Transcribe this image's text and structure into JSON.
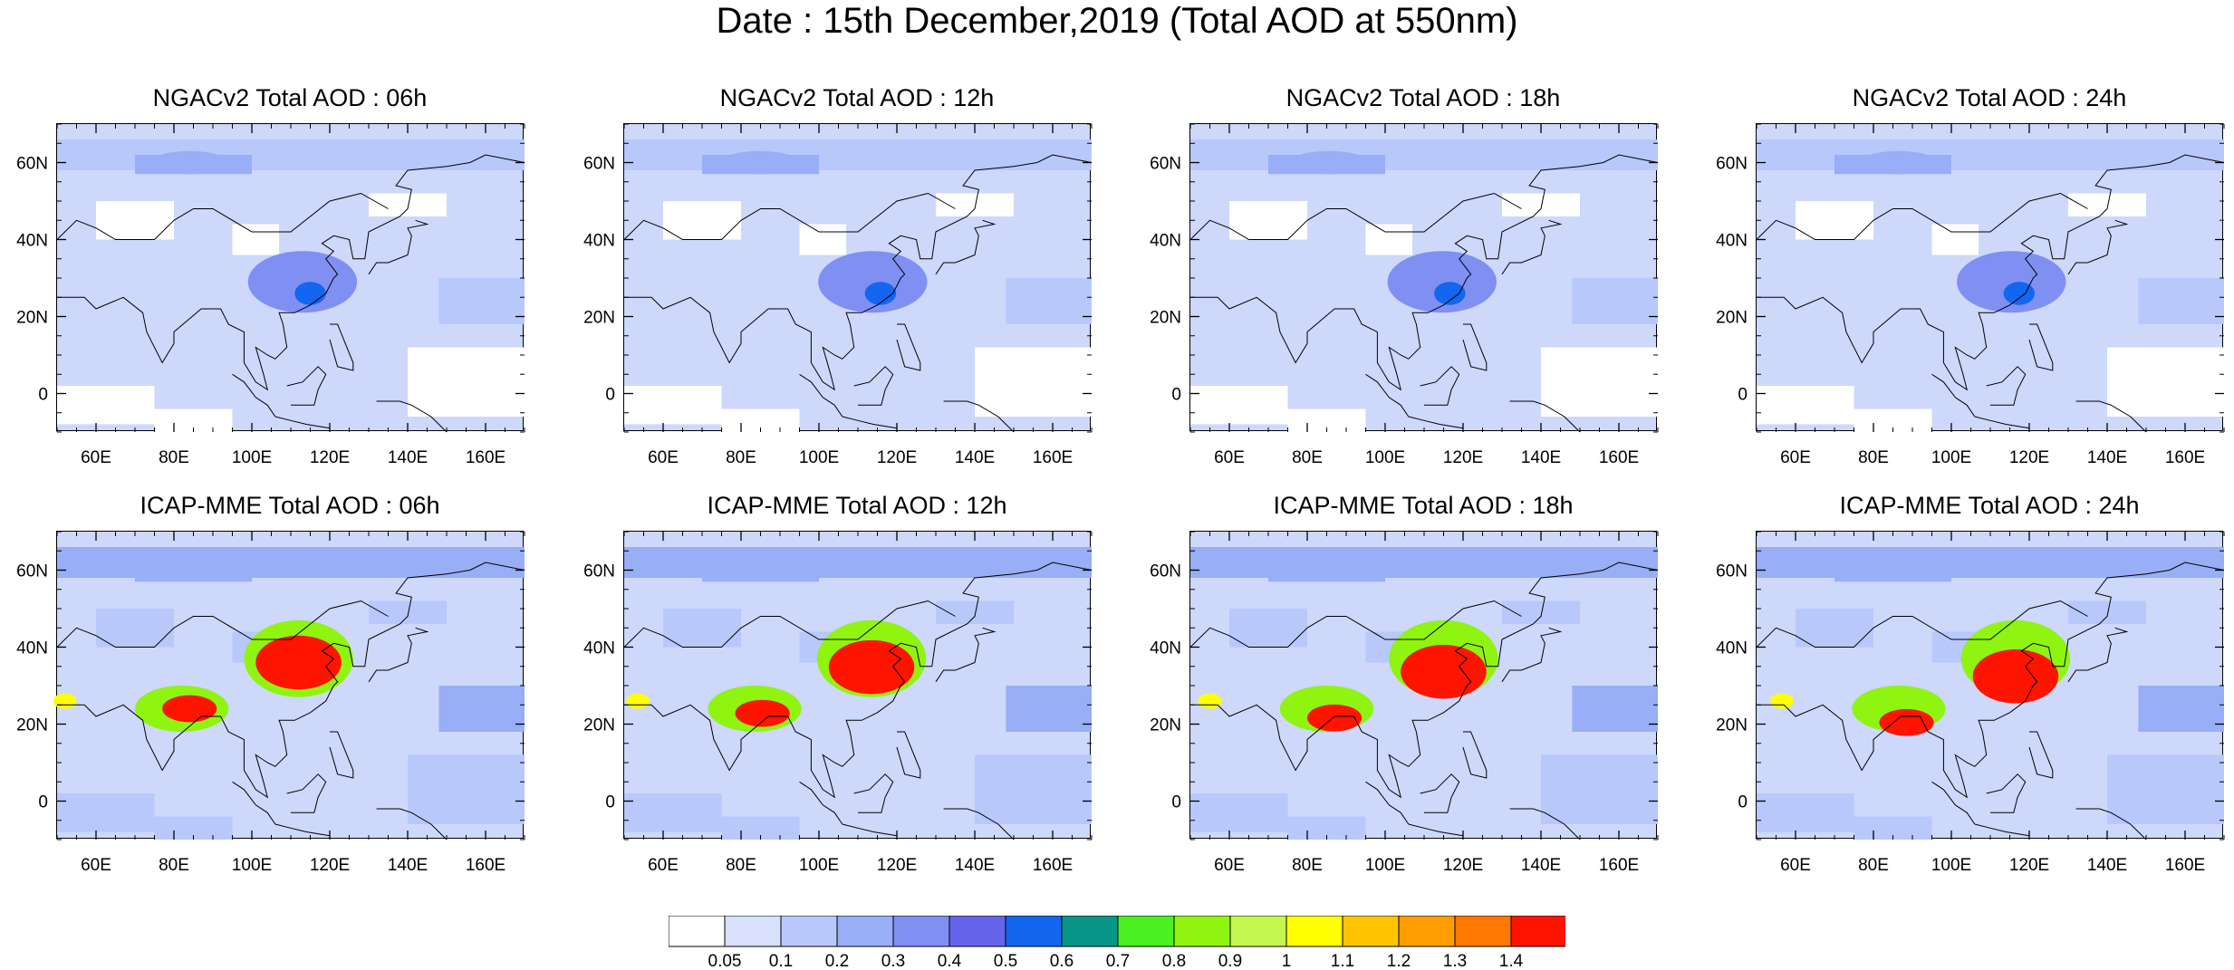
{
  "figure": {
    "title": "Date : 15th December,2019 (Total AOD at 550nm)"
  },
  "chart_data": {
    "type": "heatmap",
    "panels": [
      {
        "title": "NGACv2 Total AOD : 06h",
        "model": "NGACv2",
        "hour": "06h"
      },
      {
        "title": "NGACv2 Total AOD : 12h",
        "model": "NGACv2",
        "hour": "12h"
      },
      {
        "title": "NGACv2 Total AOD : 18h",
        "model": "NGACv2",
        "hour": "18h"
      },
      {
        "title": "NGACv2 Total AOD : 24h",
        "model": "NGACv2",
        "hour": "24h"
      },
      {
        "title": "ICAP-MME Total AOD : 06h",
        "model": "ICAP-MME",
        "hour": "06h"
      },
      {
        "title": "ICAP-MME Total AOD : 12h",
        "model": "ICAP-MME",
        "hour": "12h"
      },
      {
        "title": "ICAP-MME Total AOD : 18h",
        "model": "ICAP-MME",
        "hour": "18h"
      },
      {
        "title": "ICAP-MME Total AOD : 24h",
        "model": "ICAP-MME",
        "hour": "24h"
      }
    ],
    "xrange": [
      50,
      170
    ],
    "yrange": [
      -10,
      70
    ],
    "xticks": [
      60,
      80,
      100,
      120,
      140,
      160
    ],
    "xtick_labels": [
      "60E",
      "80E",
      "100E",
      "120E",
      "140E",
      "160E"
    ],
    "yticks": [
      0,
      20,
      40,
      60
    ],
    "ytick_labels": [
      "0",
      "20N",
      "40N",
      "60N"
    ],
    "colorbar": {
      "levels": [
        "0.05",
        "0.1",
        "0.2",
        "0.3",
        "0.4",
        "0.5",
        "0.6",
        "0.7",
        "0.8",
        "0.9",
        "1",
        "1.1",
        "1.2",
        "1.3",
        "1.4"
      ],
      "colors": [
        "#ffffff",
        "#d8e0fc",
        "#b8c8fa",
        "#98aef6",
        "#7f8ff2",
        "#6563ea",
        "#1266f0",
        "#079688",
        "#4af020",
        "#8ff410",
        "#c4f850",
        "#ffff00",
        "#ffc400",
        "#ff9d00",
        "#ff7800",
        "#ff1400"
      ]
    },
    "hotspots": {
      "NGACv2": [
        {
          "lon": 113,
          "lat": 29,
          "rx": 14,
          "ry": 8,
          "level": 0.3
        },
        {
          "lon": 115,
          "lat": 26,
          "rx": 4,
          "ry": 3,
          "level": 0.5
        },
        {
          "lon": 84,
          "lat": 60,
          "rx": 10,
          "ry": 3,
          "level": 0.2
        }
      ],
      "ICAP-MME": [
        {
          "lon": 112,
          "lat": 37,
          "rx": 14,
          "ry": 10,
          "level": 0.8
        },
        {
          "lon": 112,
          "lat": 36,
          "rx": 11,
          "ry": 7,
          "level": 1.4
        },
        {
          "lon": 82,
          "lat": 24,
          "rx": 12,
          "ry": 6,
          "level": 0.8
        },
        {
          "lon": 84,
          "lat": 24,
          "rx": 7,
          "ry": 3.5,
          "level": 1.4
        },
        {
          "lon": 52,
          "lat": 26,
          "rx": 3,
          "ry": 2,
          "level": 1.0
        }
      ]
    }
  }
}
